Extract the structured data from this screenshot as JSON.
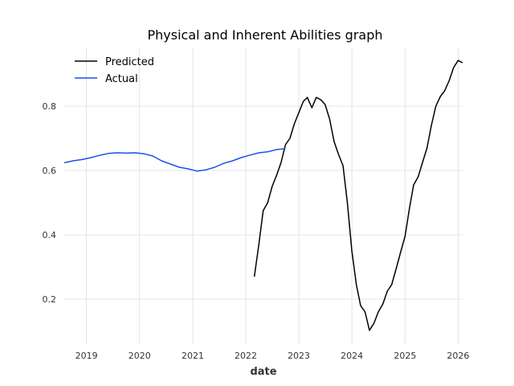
{
  "chart_data": {
    "type": "line",
    "title": "Physical and Inherent Abilities graph",
    "xlabel": "date",
    "ylabel": "",
    "x_ticks": [
      "2019",
      "2020",
      "2021",
      "2022",
      "2023",
      "2024",
      "2025",
      "2026"
    ],
    "y_ticks": [
      "0.2",
      "0.4",
      "0.6",
      "0.8"
    ],
    "xlim": [
      "2018-08-01",
      "2026-02-01"
    ],
    "ylim": [
      0.06,
      0.98
    ],
    "grid": true,
    "legend_position": "top-left",
    "series": [
      {
        "name": "Predicted",
        "color": "#000000",
        "points": [
          [
            "2022-03-01",
            0.27
          ],
          [
            "2022-04-01",
            0.37
          ],
          [
            "2022-05-01",
            0.475
          ],
          [
            "2022-06-01",
            0.5
          ],
          [
            "2022-07-01",
            0.55
          ],
          [
            "2022-08-01",
            0.585
          ],
          [
            "2022-09-01",
            0.625
          ],
          [
            "2022-10-01",
            0.68
          ],
          [
            "2022-11-01",
            0.7
          ],
          [
            "2022-12-01",
            0.745
          ],
          [
            "2023-01-01",
            0.78
          ],
          [
            "2023-02-01",
            0.815
          ],
          [
            "2023-03-01",
            0.827
          ],
          [
            "2023-04-01",
            0.795
          ],
          [
            "2023-05-01",
            0.827
          ],
          [
            "2023-06-01",
            0.82
          ],
          [
            "2023-07-01",
            0.805
          ],
          [
            "2023-08-01",
            0.76
          ],
          [
            "2023-09-01",
            0.69
          ],
          [
            "2023-10-01",
            0.65
          ],
          [
            "2023-11-01",
            0.615
          ],
          [
            "2023-12-01",
            0.5
          ],
          [
            "2024-01-01",
            0.35
          ],
          [
            "2024-02-01",
            0.245
          ],
          [
            "2024-03-01",
            0.18
          ],
          [
            "2024-04-01",
            0.16
          ],
          [
            "2024-05-01",
            0.103
          ],
          [
            "2024-06-01",
            0.125
          ],
          [
            "2024-07-01",
            0.16
          ],
          [
            "2024-08-01",
            0.185
          ],
          [
            "2024-09-01",
            0.225
          ],
          [
            "2024-10-01",
            0.245
          ],
          [
            "2024-11-01",
            0.295
          ],
          [
            "2024-12-01",
            0.345
          ],
          [
            "2025-01-01",
            0.395
          ],
          [
            "2025-02-01",
            0.485
          ],
          [
            "2025-03-01",
            0.555
          ],
          [
            "2025-04-01",
            0.58
          ],
          [
            "2025-05-01",
            0.625
          ],
          [
            "2025-06-01",
            0.67
          ],
          [
            "2025-07-01",
            0.74
          ],
          [
            "2025-08-01",
            0.8
          ],
          [
            "2025-09-01",
            0.83
          ],
          [
            "2025-10-01",
            0.848
          ],
          [
            "2025-11-01",
            0.88
          ],
          [
            "2025-12-01",
            0.92
          ],
          [
            "2026-01-01",
            0.942
          ],
          [
            "2026-02-01",
            0.935
          ]
        ]
      },
      {
        "name": "Actual",
        "color": "#1f4fe8",
        "points": [
          [
            "2018-08-01",
            0.624
          ],
          [
            "2018-10-01",
            0.63
          ],
          [
            "2018-12-01",
            0.634
          ],
          [
            "2019-02-01",
            0.64
          ],
          [
            "2019-04-01",
            0.647
          ],
          [
            "2019-06-01",
            0.653
          ],
          [
            "2019-08-01",
            0.655
          ],
          [
            "2019-10-01",
            0.654
          ],
          [
            "2019-12-01",
            0.655
          ],
          [
            "2020-02-01",
            0.652
          ],
          [
            "2020-04-01",
            0.645
          ],
          [
            "2020-06-01",
            0.63
          ],
          [
            "2020-08-01",
            0.62
          ],
          [
            "2020-10-01",
            0.61
          ],
          [
            "2020-12-01",
            0.605
          ],
          [
            "2021-02-01",
            0.598
          ],
          [
            "2021-04-01",
            0.602
          ],
          [
            "2021-06-01",
            0.61
          ],
          [
            "2021-08-01",
            0.622
          ],
          [
            "2021-10-01",
            0.63
          ],
          [
            "2021-12-01",
            0.64
          ],
          [
            "2022-02-01",
            0.648
          ],
          [
            "2022-04-01",
            0.655
          ],
          [
            "2022-06-01",
            0.658
          ],
          [
            "2022-08-01",
            0.665
          ],
          [
            "2022-10-01",
            0.668
          ]
        ]
      }
    ]
  }
}
